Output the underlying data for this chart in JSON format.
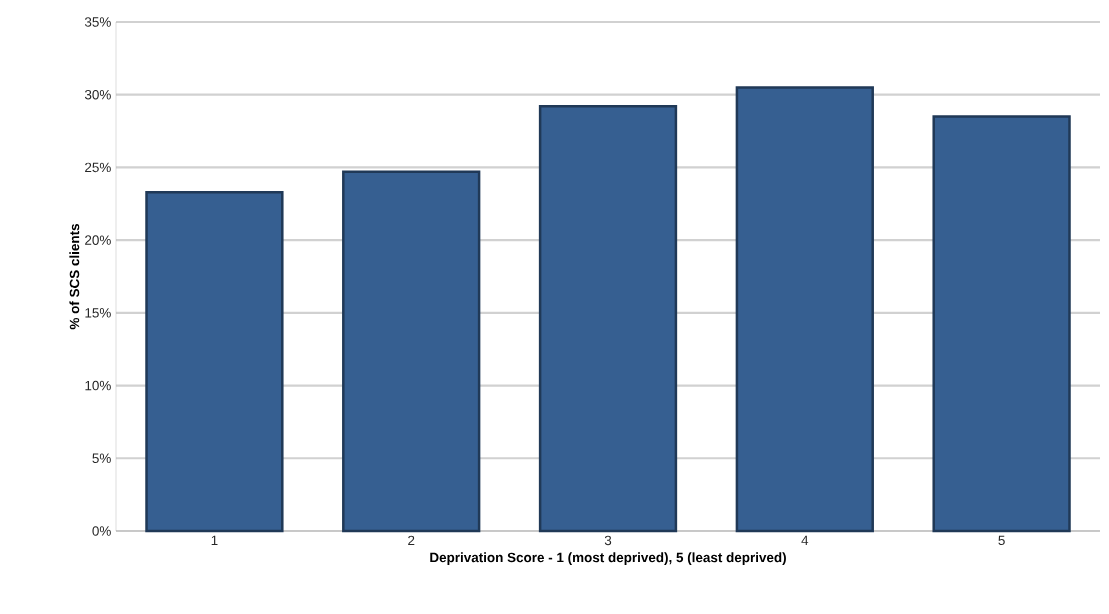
{
  "chart_data": {
    "type": "bar",
    "xlabel": "Deprivation Score - 1 (most deprived), 5 (least deprived)",
    "ylabel": "% of SCS clients",
    "categories": [
      "1",
      "2",
      "3",
      "4",
      "5"
    ],
    "values": [
      23.3,
      24.7,
      29.2,
      30.5,
      28.5
    ],
    "color": "#365f91",
    "ylim": [
      0,
      35
    ],
    "yticks": [
      {
        "value": 0,
        "label": "0%"
      },
      {
        "value": 5,
        "label": "5%"
      },
      {
        "value": 10,
        "label": "10%"
      },
      {
        "value": 15,
        "label": "15%"
      },
      {
        "value": 20,
        "label": "20%"
      },
      {
        "value": 25,
        "label": "25%"
      },
      {
        "value": 30,
        "label": "30%"
      },
      {
        "value": 35,
        "label": "35%"
      }
    ],
    "grid": "y"
  }
}
